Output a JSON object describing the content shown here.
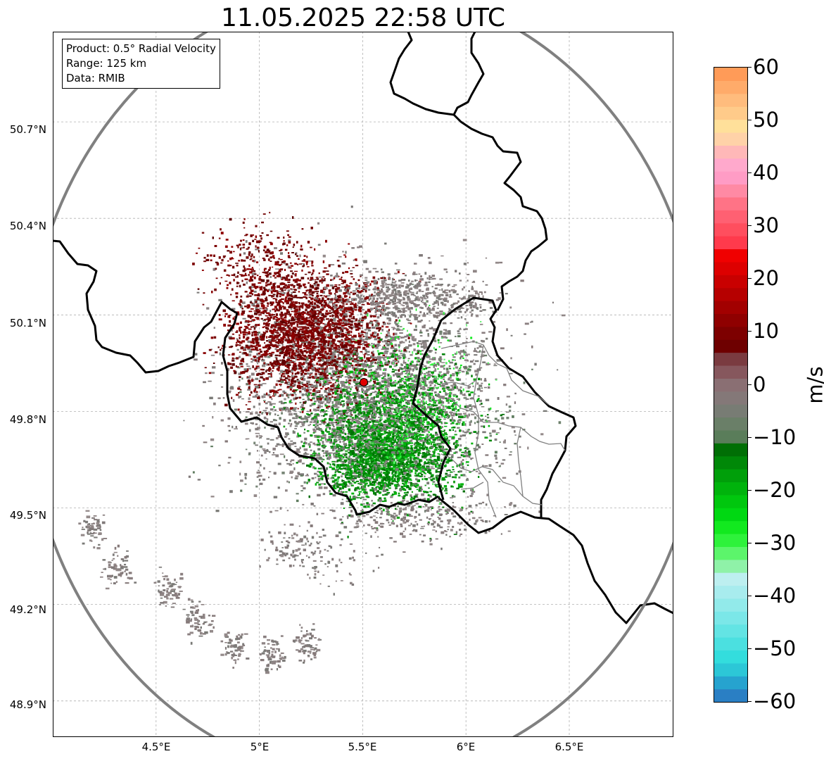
{
  "title": "11.05.2025 22:58 UTC",
  "info_box": {
    "product": "Product: 0.5° Radial Velocity",
    "range": "Range: 125 km",
    "data": "Data: RMIB"
  },
  "map": {
    "lon_range": [
      4.0,
      7.0
    ],
    "lat_range": [
      48.8,
      51.0
    ],
    "radar_site": {
      "lon": 5.505,
      "lat": 49.914
    },
    "range_ring_color": "#808080",
    "border_color": "#000000",
    "district_border_color": "#808080",
    "grid": true
  },
  "lat_ticks": [
    {
      "value": 50.7,
      "label": "50.7°N"
    },
    {
      "value": 50.4,
      "label": "50.4°N"
    },
    {
      "value": 50.1,
      "label": "50.1°N"
    },
    {
      "value": 49.8,
      "label": "49.8°N"
    },
    {
      "value": 49.5,
      "label": "49.5°N"
    },
    {
      "value": 49.2,
      "label": "49.2°N"
    },
    {
      "value": 48.9,
      "label": "48.9°N"
    }
  ],
  "lon_ticks": [
    {
      "value": 4.5,
      "label": "4.5°E"
    },
    {
      "value": 5.0,
      "label": "5°E"
    },
    {
      "value": 5.5,
      "label": "5.5°E"
    },
    {
      "value": 6.0,
      "label": "6°E"
    },
    {
      "value": 6.5,
      "label": "6.5°E"
    }
  ],
  "colorbar": {
    "unit": "m/s",
    "min": -60,
    "max": 60,
    "ticks": [
      {
        "value": 60,
        "label": "60"
      },
      {
        "value": 50,
        "label": "50"
      },
      {
        "value": 40,
        "label": "40"
      },
      {
        "value": 30,
        "label": "30"
      },
      {
        "value": 20,
        "label": "20"
      },
      {
        "value": 10,
        "label": "10"
      },
      {
        "value": 0,
        "label": "0"
      },
      {
        "value": -10,
        "label": "−10"
      },
      {
        "value": -20,
        "label": "−20"
      },
      {
        "value": -30,
        "label": "−30"
      },
      {
        "value": -40,
        "label": "−40"
      },
      {
        "value": -50,
        "label": "−50"
      },
      {
        "value": -60,
        "label": "−60"
      }
    ],
    "colors": [
      "#2a7fc4",
      "#26a3cf",
      "#2cc7d7",
      "#33dddd",
      "#4be0e0",
      "#63e4e4",
      "#7be7e8",
      "#92eaea",
      "#a8ecee",
      "#bdeff0",
      "#8ff2a8",
      "#5cf56b",
      "#2ef23b",
      "#12e91f",
      "#00d812",
      "#00c70e",
      "#00b30c",
      "#009f0a",
      "#008808",
      "#006f05",
      "#5a7d5a",
      "#6a7f68",
      "#787c74",
      "#847878",
      "#8a6f73",
      "#86575d",
      "#7a3b40",
      "#6e0000",
      "#7d0000",
      "#8f0000",
      "#a20000",
      "#b60000",
      "#c90000",
      "#dd0000",
      "#f00000",
      "#ff3a4c",
      "#ff4e5e",
      "#ff6072",
      "#ff7386",
      "#ff8aa4",
      "#ff9cc5",
      "#ffa9cc",
      "#ffb8b8",
      "#ffd2a8",
      "#ffe09a",
      "#ffcb8a",
      "#ffbc7d",
      "#ffab6a",
      "#ff9b58"
    ]
  }
}
